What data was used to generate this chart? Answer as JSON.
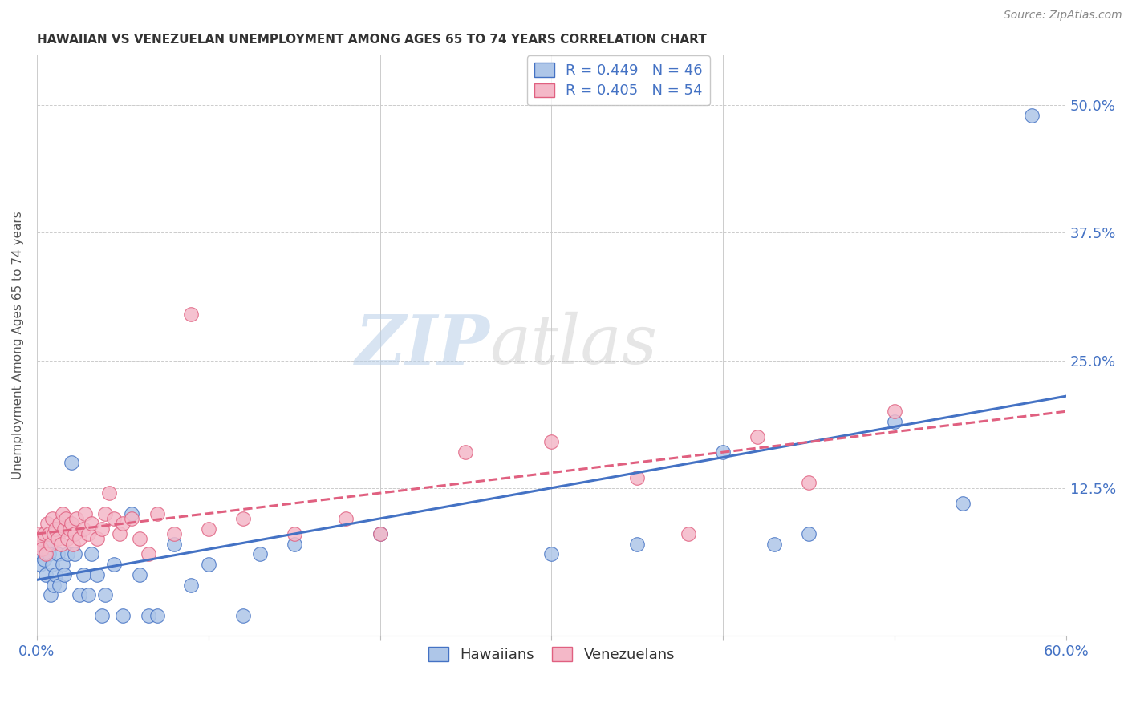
{
  "title": "HAWAIIAN VS VENEZUELAN UNEMPLOYMENT AMONG AGES 65 TO 74 YEARS CORRELATION CHART",
  "source": "Source: ZipAtlas.com",
  "ylabel": "Unemployment Among Ages 65 to 74 years",
  "xlim": [
    0.0,
    0.6
  ],
  "ylim": [
    -0.02,
    0.55
  ],
  "xticks": [
    0.0,
    0.1,
    0.2,
    0.3,
    0.4,
    0.5,
    0.6
  ],
  "xticklabels": [
    "0.0%",
    "",
    "",
    "",
    "",
    "",
    "60.0%"
  ],
  "ytick_positions": [
    0.0,
    0.125,
    0.25,
    0.375,
    0.5
  ],
  "ytick_labels": [
    "",
    "12.5%",
    "25.0%",
    "37.5%",
    "50.0%"
  ],
  "hawaiian_color": "#aec6e8",
  "venezuelan_color": "#f4b8c8",
  "line_hawaiian_color": "#4472c4",
  "line_venezuelan_color": "#e06080",
  "watermark_zip": "ZIP",
  "watermark_atlas": "atlas",
  "background_color": "#ffffff",
  "hawaiians_x": [
    0.001,
    0.002,
    0.003,
    0.004,
    0.005,
    0.006,
    0.007,
    0.008,
    0.009,
    0.01,
    0.011,
    0.012,
    0.013,
    0.015,
    0.016,
    0.018,
    0.02,
    0.022,
    0.025,
    0.027,
    0.03,
    0.032,
    0.035,
    0.038,
    0.04,
    0.045,
    0.05,
    0.055,
    0.06,
    0.065,
    0.07,
    0.08,
    0.09,
    0.1,
    0.12,
    0.13,
    0.15,
    0.2,
    0.3,
    0.35,
    0.4,
    0.43,
    0.45,
    0.5,
    0.54,
    0.58
  ],
  "hawaiians_y": [
    0.06,
    0.05,
    0.065,
    0.055,
    0.04,
    0.07,
    0.06,
    0.02,
    0.05,
    0.03,
    0.04,
    0.06,
    0.03,
    0.05,
    0.04,
    0.06,
    0.15,
    0.06,
    0.02,
    0.04,
    0.02,
    0.06,
    0.04,
    0.0,
    0.02,
    0.05,
    0.0,
    0.1,
    0.04,
    0.0,
    0.0,
    0.07,
    0.03,
    0.05,
    0.0,
    0.06,
    0.07,
    0.08,
    0.06,
    0.07,
    0.16,
    0.07,
    0.08,
    0.19,
    0.11,
    0.49
  ],
  "venezuelans_x": [
    0.0,
    0.001,
    0.002,
    0.003,
    0.004,
    0.005,
    0.006,
    0.007,
    0.008,
    0.009,
    0.01,
    0.011,
    0.012,
    0.013,
    0.014,
    0.015,
    0.016,
    0.017,
    0.018,
    0.019,
    0.02,
    0.021,
    0.022,
    0.023,
    0.025,
    0.027,
    0.028,
    0.03,
    0.032,
    0.035,
    0.038,
    0.04,
    0.042,
    0.045,
    0.048,
    0.05,
    0.055,
    0.06,
    0.065,
    0.07,
    0.08,
    0.09,
    0.1,
    0.12,
    0.15,
    0.18,
    0.2,
    0.25,
    0.3,
    0.35,
    0.38,
    0.42,
    0.45,
    0.5
  ],
  "venezuelans_y": [
    0.07,
    0.08,
    0.075,
    0.065,
    0.08,
    0.06,
    0.09,
    0.08,
    0.07,
    0.095,
    0.08,
    0.085,
    0.075,
    0.09,
    0.07,
    0.1,
    0.085,
    0.095,
    0.075,
    0.085,
    0.09,
    0.07,
    0.08,
    0.095,
    0.075,
    0.085,
    0.1,
    0.08,
    0.09,
    0.075,
    0.085,
    0.1,
    0.12,
    0.095,
    0.08,
    0.09,
    0.095,
    0.075,
    0.06,
    0.1,
    0.08,
    0.295,
    0.085,
    0.095,
    0.08,
    0.095,
    0.08,
    0.16,
    0.17,
    0.135,
    0.08,
    0.175,
    0.13,
    0.2
  ],
  "h_line_x0": 0.0,
  "h_line_y0": 0.035,
  "h_line_x1": 0.6,
  "h_line_y1": 0.215,
  "v_line_x0": 0.0,
  "v_line_y0": 0.08,
  "v_line_x1": 0.6,
  "v_line_y1": 0.2
}
